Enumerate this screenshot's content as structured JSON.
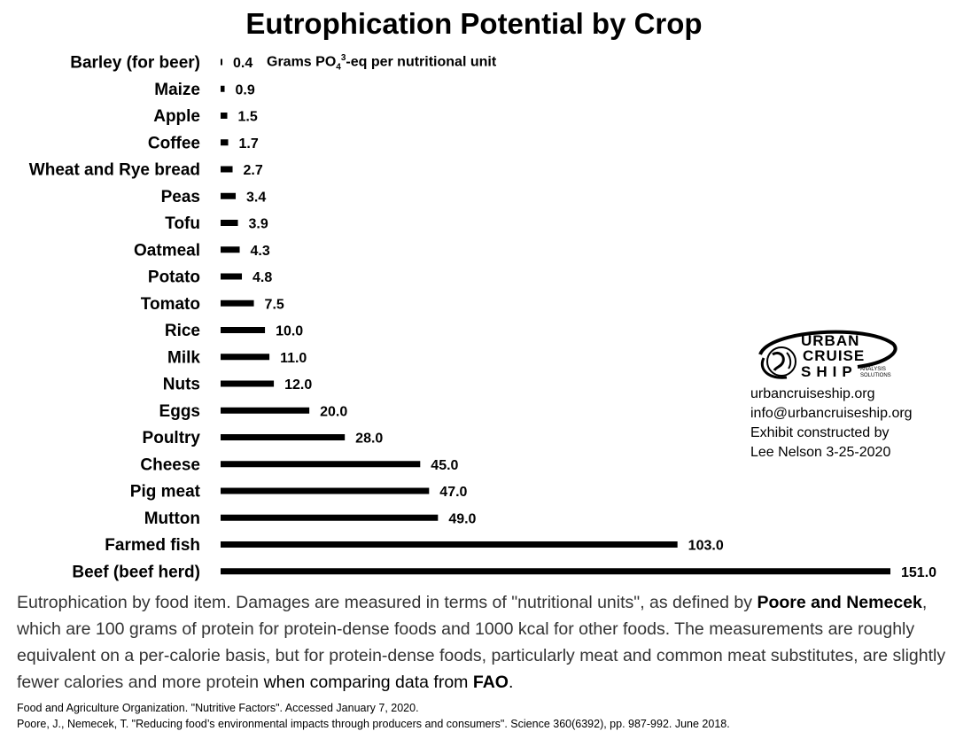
{
  "chart_data": {
    "type": "bar",
    "orientation": "horizontal",
    "title": "Eutrophication Potential by Crop",
    "unit_label": {
      "prefix": "Grams PO",
      "sub": "4",
      "sup": "3",
      "suffix": "-eq per nutritional unit"
    },
    "categories": [
      "Barley (for beer)",
      "Maize",
      "Apple",
      "Coffee",
      "Wheat and Rye bread",
      "Peas",
      "Tofu",
      "Oatmeal",
      "Potato",
      "Tomato",
      "Rice",
      "Milk",
      "Nuts",
      "Eggs",
      "Poultry",
      "Cheese",
      "Pig meat",
      "Mutton",
      "Farmed fish",
      "Beef (beef herd)"
    ],
    "values": [
      0.4,
      0.9,
      1.5,
      1.7,
      2.7,
      3.4,
      3.9,
      4.3,
      4.8,
      7.5,
      10.0,
      11.0,
      12.0,
      20.0,
      28.0,
      45.0,
      47.0,
      49.0,
      103.0,
      151.0
    ],
    "value_labels": [
      "0.4",
      "0.9",
      "1.5",
      "1.7",
      "2.7",
      "3.4",
      "3.9",
      "4.3",
      "4.8",
      "7.5",
      "10.0",
      "11.0",
      "12.0",
      "20.0",
      "28.0",
      "45.0",
      "47.0",
      "49.0",
      "103.0",
      "151.0"
    ],
    "xlim": [
      0,
      151
    ],
    "grid": false,
    "legend": "none",
    "bar_color": "#000000"
  },
  "logo": {
    "line1": "URBAN",
    "line2": "CRUISE",
    "line3": "SHIP",
    "small1": "ANALYSIS",
    "small2": "SOLUTIONS"
  },
  "contact": {
    "website": "urbancruiseship.org",
    "email": "info@urbancruiseship.org",
    "credit1": "Exhibit constructed by",
    "credit2": "Lee Nelson 3-25-2020"
  },
  "caption": {
    "part1": "Eutrophication by food item. Damages are measured in terms of \"nutritional units\", as defined by ",
    "bold1": "Poore and Nemecek",
    "part2": ", which are 100 grams of protein for protein-dense foods and 1000 kcal for other foods. The measurements are roughly equivalent on a per-calorie basis, but for protein-dense foods, particularly meat and common meat substitutes, are slightly fewer calories and more protein ",
    "part3": "when comparing data from ",
    "bold2": "FAO",
    "part4": "."
  },
  "footnotes": [
    "Food and Agriculture Organization. \"Nutritive Factors\". Accessed January 7, 2020.",
    "Poore, J., Nemecek, T. \"Reducing food’s environmental impacts through producers and consumers\". Science 360(6392), pp. 987-992. June 2018."
  ]
}
